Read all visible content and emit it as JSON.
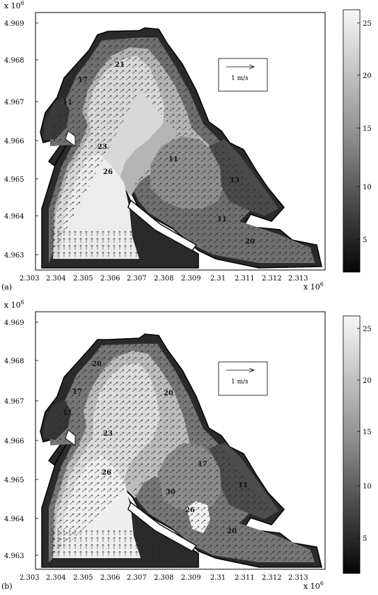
{
  "panels": [
    {
      "id": "a",
      "label": "(a)",
      "y_exponent": "x 10",
      "y_exponent_power": "6",
      "x_exponent": "x 10",
      "x_exponent_power": "6",
      "y_ticks": [
        "4.969",
        "4.968",
        "4.967",
        "4.966",
        "4.965",
        "4.964",
        "4.963"
      ],
      "x_ticks": [
        "2.303",
        "2.304",
        "2.305",
        "2.306",
        "2.307",
        "2.308",
        "2.309",
        "2.31",
        "2.311",
        "2.312",
        "2.313"
      ],
      "scale_arrow_label": "1 m/s",
      "contour_labels": [
        "21",
        "17",
        "11",
        "23",
        "26",
        "11",
        "13",
        "11",
        "20"
      ],
      "colorbar_ticks": [
        "25",
        "20",
        "15",
        "10",
        "5"
      ]
    },
    {
      "id": "b",
      "label": "(b)",
      "y_exponent": "x 10",
      "y_exponent_power": "6",
      "x_exponent": "x 10",
      "x_exponent_power": "6",
      "y_ticks": [
        "4.969",
        "4.968",
        "4.967",
        "4.966",
        "4.965",
        "4.964",
        "4.963"
      ],
      "x_ticks": [
        "2.303",
        "2.304",
        "2.305",
        "2.306",
        "2.307",
        "2.308",
        "2.309",
        "2.31",
        "2.311",
        "2.312",
        "2.313"
      ],
      "scale_arrow_label": "1 m/s",
      "contour_labels": [
        "20",
        "17",
        "11",
        "23",
        "26",
        "20",
        "30",
        "26",
        "17",
        "11",
        "20"
      ],
      "colorbar_ticks": [
        "25",
        "20",
        "15",
        "10",
        "5"
      ]
    }
  ],
  "colors": {
    "frame": "#000000",
    "coast": "#1a1a1a",
    "light": "#e6e6e6",
    "mid": "#a8a8a8",
    "dark": "#555555",
    "darkest": "#222222"
  }
}
